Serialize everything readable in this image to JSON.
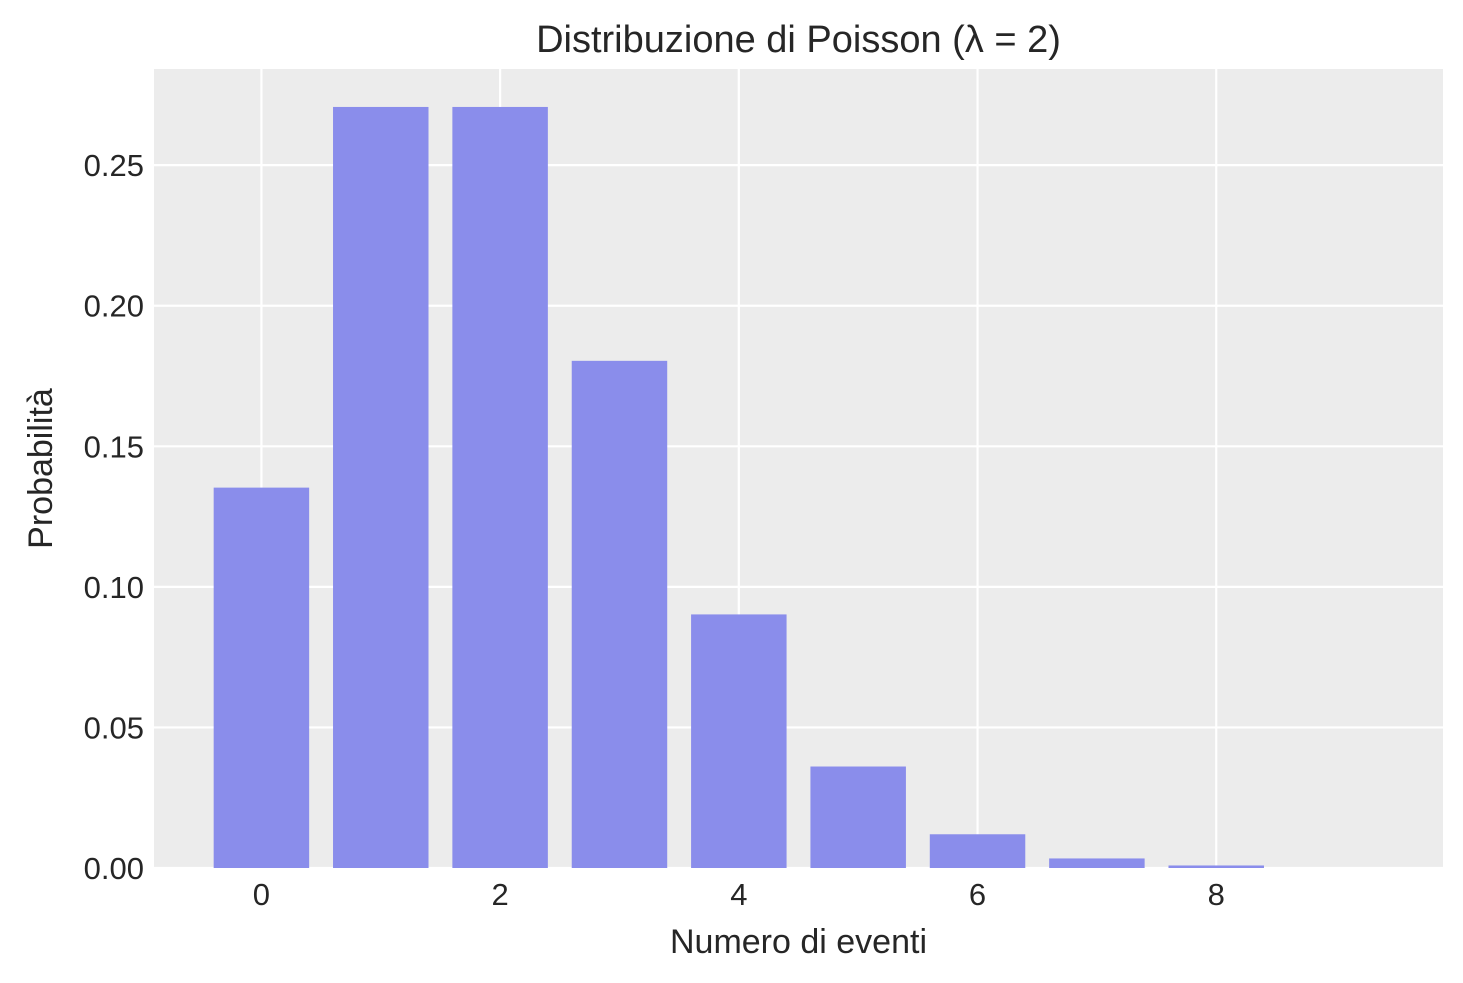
{
  "chart_data": {
    "type": "bar",
    "title": "Distribuzione di Poisson (λ = 2)",
    "xlabel": "Numero di eventi",
    "ylabel": "Probabilità",
    "x": [
      0,
      1,
      2,
      3,
      4,
      5,
      6,
      7,
      8
    ],
    "values": [
      0.1353,
      0.2707,
      0.2707,
      0.1804,
      0.0902,
      0.0361,
      0.012,
      0.0034,
      0.0009
    ],
    "xlim": [
      -0.9,
      9.9
    ],
    "ylim": [
      0,
      0.2842
    ],
    "xticks": [
      0,
      2,
      4,
      6,
      8
    ],
    "xtick_labels": [
      "0",
      "2",
      "4",
      "6",
      "8"
    ],
    "yticks": [
      0,
      0.05,
      0.1,
      0.15,
      0.2,
      0.25
    ],
    "ytick_labels": [
      "0.00",
      "0.05",
      "0.10",
      "0.15",
      "0.20",
      "0.25"
    ],
    "bar_width": 0.8,
    "grid": true,
    "colors": {
      "bar": "#8a8deb",
      "plot_background": "#ececec",
      "grid": "#ffffff",
      "text": "#262626"
    }
  }
}
